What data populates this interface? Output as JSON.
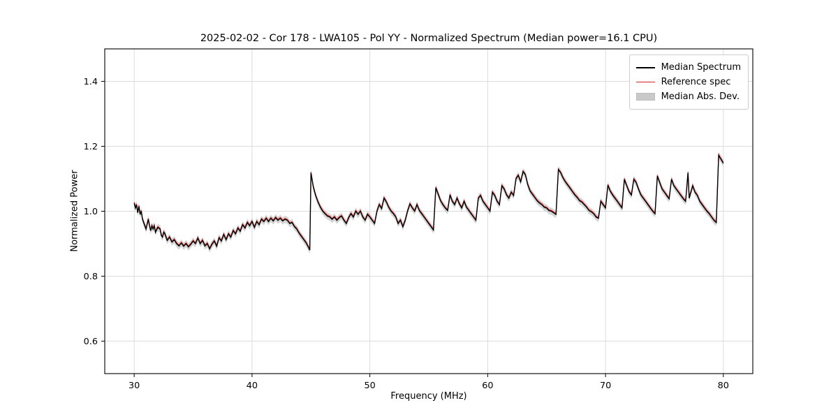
{
  "chart_data": {
    "type": "line",
    "title": "2025-02-02 - Cor 178 - LWA105 - Pol YY - Normalized Spectrum (Median power=16.1 CPU)",
    "xlabel": "Frequency (MHz)",
    "ylabel": "Normalized Power",
    "xlim": [
      27.5,
      82.5
    ],
    "ylim": [
      0.5,
      1.5
    ],
    "x_ticks": [
      30,
      40,
      50,
      60,
      70,
      80
    ],
    "y_ticks": [
      0.6,
      0.8,
      1.0,
      1.2,
      1.4
    ],
    "grid": true,
    "legend_position": "upper right",
    "mad_band_halfwidth": 0.011,
    "colors": {
      "median": "#000000",
      "reference": "#d62728",
      "band": "#c9c9c9",
      "grid": "#dcdcdc"
    },
    "series": [
      {
        "name": "Median Spectrum",
        "color": "#000000",
        "type": "line",
        "points": [
          [
            30.0,
            1.025
          ],
          [
            30.1,
            1.01
          ],
          [
            30.2,
            1.02
          ],
          [
            30.3,
            0.995
          ],
          [
            30.4,
            1.015
          ],
          [
            30.5,
            0.99
          ],
          [
            30.6,
            1.0
          ],
          [
            30.7,
            0.975
          ],
          [
            30.8,
            0.965
          ],
          [
            31.0,
            0.945
          ],
          [
            31.1,
            0.96
          ],
          [
            31.2,
            0.975
          ],
          [
            31.3,
            0.955
          ],
          [
            31.4,
            0.94
          ],
          [
            31.5,
            0.955
          ],
          [
            31.6,
            0.945
          ],
          [
            31.7,
            0.955
          ],
          [
            31.8,
            0.935
          ],
          [
            32.0,
            0.95
          ],
          [
            32.2,
            0.945
          ],
          [
            32.3,
            0.925
          ],
          [
            32.4,
            0.92
          ],
          [
            32.5,
            0.935
          ],
          [
            32.6,
            0.93
          ],
          [
            32.8,
            0.91
          ],
          [
            33.0,
            0.92
          ],
          [
            33.2,
            0.905
          ],
          [
            33.4,
            0.912
          ],
          [
            33.6,
            0.9
          ],
          [
            33.8,
            0.893
          ],
          [
            34.0,
            0.902
          ],
          [
            34.2,
            0.892
          ],
          [
            34.4,
            0.9
          ],
          [
            34.6,
            0.89
          ],
          [
            34.8,
            0.898
          ],
          [
            35.0,
            0.908
          ],
          [
            35.2,
            0.9
          ],
          [
            35.4,
            0.917
          ],
          [
            35.6,
            0.9
          ],
          [
            35.8,
            0.91
          ],
          [
            36.0,
            0.893
          ],
          [
            36.2,
            0.9
          ],
          [
            36.4,
            0.884
          ],
          [
            36.6,
            0.898
          ],
          [
            36.8,
            0.908
          ],
          [
            37.0,
            0.892
          ],
          [
            37.2,
            0.918
          ],
          [
            37.4,
            0.908
          ],
          [
            37.6,
            0.928
          ],
          [
            37.8,
            0.912
          ],
          [
            38.0,
            0.93
          ],
          [
            38.2,
            0.92
          ],
          [
            38.4,
            0.94
          ],
          [
            38.6,
            0.93
          ],
          [
            38.8,
            0.948
          ],
          [
            39.0,
            0.938
          ],
          [
            39.2,
            0.958
          ],
          [
            39.4,
            0.948
          ],
          [
            39.6,
            0.965
          ],
          [
            39.8,
            0.955
          ],
          [
            40.0,
            0.968
          ],
          [
            40.2,
            0.95
          ],
          [
            40.4,
            0.968
          ],
          [
            40.6,
            0.958
          ],
          [
            40.8,
            0.975
          ],
          [
            41.0,
            0.968
          ],
          [
            41.2,
            0.978
          ],
          [
            41.4,
            0.968
          ],
          [
            41.6,
            0.978
          ],
          [
            41.8,
            0.97
          ],
          [
            42.0,
            0.98
          ],
          [
            42.2,
            0.972
          ],
          [
            42.4,
            0.978
          ],
          [
            42.6,
            0.97
          ],
          [
            42.8,
            0.975
          ],
          [
            43.0,
            0.972
          ],
          [
            43.2,
            0.962
          ],
          [
            43.4,
            0.965
          ],
          [
            43.6,
            0.952
          ],
          [
            43.8,
            0.945
          ],
          [
            44.0,
            0.932
          ],
          [
            44.2,
            0.922
          ],
          [
            44.4,
            0.912
          ],
          [
            44.6,
            0.902
          ],
          [
            44.8,
            0.888
          ],
          [
            44.9,
            0.88
          ],
          [
            45.0,
            1.118
          ],
          [
            45.2,
            1.075
          ],
          [
            45.4,
            1.048
          ],
          [
            45.6,
            1.028
          ],
          [
            45.8,
            1.012
          ],
          [
            46.0,
            1.0
          ],
          [
            46.2,
            0.992
          ],
          [
            46.4,
            0.985
          ],
          [
            46.6,
            0.982
          ],
          [
            46.8,
            0.975
          ],
          [
            47.0,
            0.982
          ],
          [
            47.2,
            0.972
          ],
          [
            47.4,
            0.98
          ],
          [
            47.6,
            0.985
          ],
          [
            47.8,
            0.972
          ],
          [
            48.0,
            0.962
          ],
          [
            48.2,
            0.98
          ],
          [
            48.4,
            0.992
          ],
          [
            48.6,
            0.982
          ],
          [
            48.8,
            1.0
          ],
          [
            49.0,
            0.99
          ],
          [
            49.2,
            1.0
          ],
          [
            49.4,
            0.982
          ],
          [
            49.6,
            0.972
          ],
          [
            49.8,
            0.99
          ],
          [
            50.0,
            0.982
          ],
          [
            50.2,
            0.972
          ],
          [
            50.4,
            0.962
          ],
          [
            50.6,
            1.0
          ],
          [
            50.8,
            1.02
          ],
          [
            51.0,
            1.008
          ],
          [
            51.2,
            1.04
          ],
          [
            51.4,
            1.028
          ],
          [
            51.6,
            1.012
          ],
          [
            51.8,
            1.0
          ],
          [
            52.0,
            0.992
          ],
          [
            52.2,
            0.982
          ],
          [
            52.4,
            0.962
          ],
          [
            52.6,
            0.972
          ],
          [
            52.8,
            0.952
          ],
          [
            53.0,
            0.972
          ],
          [
            53.2,
            1.0
          ],
          [
            53.4,
            1.022
          ],
          [
            53.6,
            1.01
          ],
          [
            53.8,
            1.0
          ],
          [
            54.0,
            1.02
          ],
          [
            54.2,
            1.002
          ],
          [
            54.4,
            0.992
          ],
          [
            54.6,
            0.982
          ],
          [
            54.8,
            0.972
          ],
          [
            55.0,
            0.962
          ],
          [
            55.2,
            0.952
          ],
          [
            55.4,
            0.942
          ],
          [
            55.6,
            1.072
          ],
          [
            55.8,
            1.052
          ],
          [
            56.0,
            1.032
          ],
          [
            56.2,
            1.02
          ],
          [
            56.4,
            1.01
          ],
          [
            56.6,
            1.002
          ],
          [
            56.8,
            1.05
          ],
          [
            57.0,
            1.03
          ],
          [
            57.2,
            1.02
          ],
          [
            57.4,
            1.04
          ],
          [
            57.6,
            1.022
          ],
          [
            57.8,
            1.01
          ],
          [
            58.0,
            1.03
          ],
          [
            58.2,
            1.012
          ],
          [
            58.4,
            1.002
          ],
          [
            58.6,
            0.992
          ],
          [
            58.8,
            0.982
          ],
          [
            59.0,
            0.972
          ],
          [
            59.2,
            1.04
          ],
          [
            59.4,
            1.048
          ],
          [
            59.6,
            1.03
          ],
          [
            59.8,
            1.02
          ],
          [
            60.0,
            1.01
          ],
          [
            60.2,
            1.0
          ],
          [
            60.4,
            1.058
          ],
          [
            60.6,
            1.048
          ],
          [
            60.8,
            1.03
          ],
          [
            61.0,
            1.02
          ],
          [
            61.2,
            1.078
          ],
          [
            61.4,
            1.068
          ],
          [
            61.6,
            1.05
          ],
          [
            61.8,
            1.04
          ],
          [
            62.0,
            1.058
          ],
          [
            62.2,
            1.048
          ],
          [
            62.4,
            1.1
          ],
          [
            62.6,
            1.11
          ],
          [
            62.8,
            1.09
          ],
          [
            63.0,
            1.122
          ],
          [
            63.2,
            1.112
          ],
          [
            63.4,
            1.082
          ],
          [
            63.6,
            1.062
          ],
          [
            63.8,
            1.052
          ],
          [
            64.0,
            1.042
          ],
          [
            64.2,
            1.032
          ],
          [
            64.4,
            1.025
          ],
          [
            64.6,
            1.02
          ],
          [
            64.8,
            1.012
          ],
          [
            65.0,
            1.01
          ],
          [
            65.2,
            1.002
          ],
          [
            65.4,
            1.0
          ],
          [
            65.6,
            0.995
          ],
          [
            65.8,
            0.99
          ],
          [
            66.0,
            1.128
          ],
          [
            66.2,
            1.118
          ],
          [
            66.4,
            1.102
          ],
          [
            66.6,
            1.09
          ],
          [
            66.8,
            1.08
          ],
          [
            67.0,
            1.07
          ],
          [
            67.2,
            1.06
          ],
          [
            67.4,
            1.05
          ],
          [
            67.6,
            1.042
          ],
          [
            67.8,
            1.032
          ],
          [
            68.0,
            1.028
          ],
          [
            68.2,
            1.02
          ],
          [
            68.4,
            1.012
          ],
          [
            68.6,
            1.002
          ],
          [
            68.8,
            0.998
          ],
          [
            69.0,
            0.992
          ],
          [
            69.2,
            0.982
          ],
          [
            69.4,
            0.978
          ],
          [
            69.6,
            1.03
          ],
          [
            69.8,
            1.02
          ],
          [
            70.0,
            1.01
          ],
          [
            70.2,
            1.08
          ],
          [
            70.4,
            1.062
          ],
          [
            70.6,
            1.05
          ],
          [
            70.8,
            1.04
          ],
          [
            71.0,
            1.03
          ],
          [
            71.2,
            1.02
          ],
          [
            71.4,
            1.01
          ],
          [
            71.6,
            1.098
          ],
          [
            71.8,
            1.078
          ],
          [
            72.0,
            1.06
          ],
          [
            72.2,
            1.05
          ],
          [
            72.4,
            1.098
          ],
          [
            72.6,
            1.088
          ],
          [
            72.8,
            1.068
          ],
          [
            73.0,
            1.05
          ],
          [
            73.2,
            1.04
          ],
          [
            73.4,
            1.03
          ],
          [
            73.6,
            1.02
          ],
          [
            73.8,
            1.01
          ],
          [
            74.0,
            1.0
          ],
          [
            74.2,
            0.992
          ],
          [
            74.4,
            1.108
          ],
          [
            74.6,
            1.088
          ],
          [
            74.8,
            1.068
          ],
          [
            75.0,
            1.058
          ],
          [
            75.2,
            1.048
          ],
          [
            75.4,
            1.038
          ],
          [
            75.6,
            1.098
          ],
          [
            75.8,
            1.078
          ],
          [
            76.0,
            1.068
          ],
          [
            76.2,
            1.058
          ],
          [
            76.4,
            1.048
          ],
          [
            76.6,
            1.038
          ],
          [
            76.8,
            1.03
          ],
          [
            77.0,
            1.118
          ],
          [
            77.1,
            1.04
          ],
          [
            77.4,
            1.078
          ],
          [
            77.6,
            1.058
          ],
          [
            77.8,
            1.048
          ],
          [
            78.0,
            1.03
          ],
          [
            78.2,
            1.02
          ],
          [
            78.4,
            1.01
          ],
          [
            78.6,
            1.0
          ],
          [
            78.8,
            0.992
          ],
          [
            79.0,
            0.982
          ],
          [
            79.2,
            0.972
          ],
          [
            79.4,
            0.965
          ],
          [
            79.6,
            1.172
          ],
          [
            79.8,
            1.16
          ],
          [
            80.0,
            1.148
          ]
        ]
      },
      {
        "name": "Reference spec",
        "color": "#d62728",
        "type": "line",
        "overlaps_median": true
      },
      {
        "name": "Median Abs. Dev.",
        "color": "#c9c9c9",
        "type": "band",
        "follows_median": true
      }
    ]
  }
}
